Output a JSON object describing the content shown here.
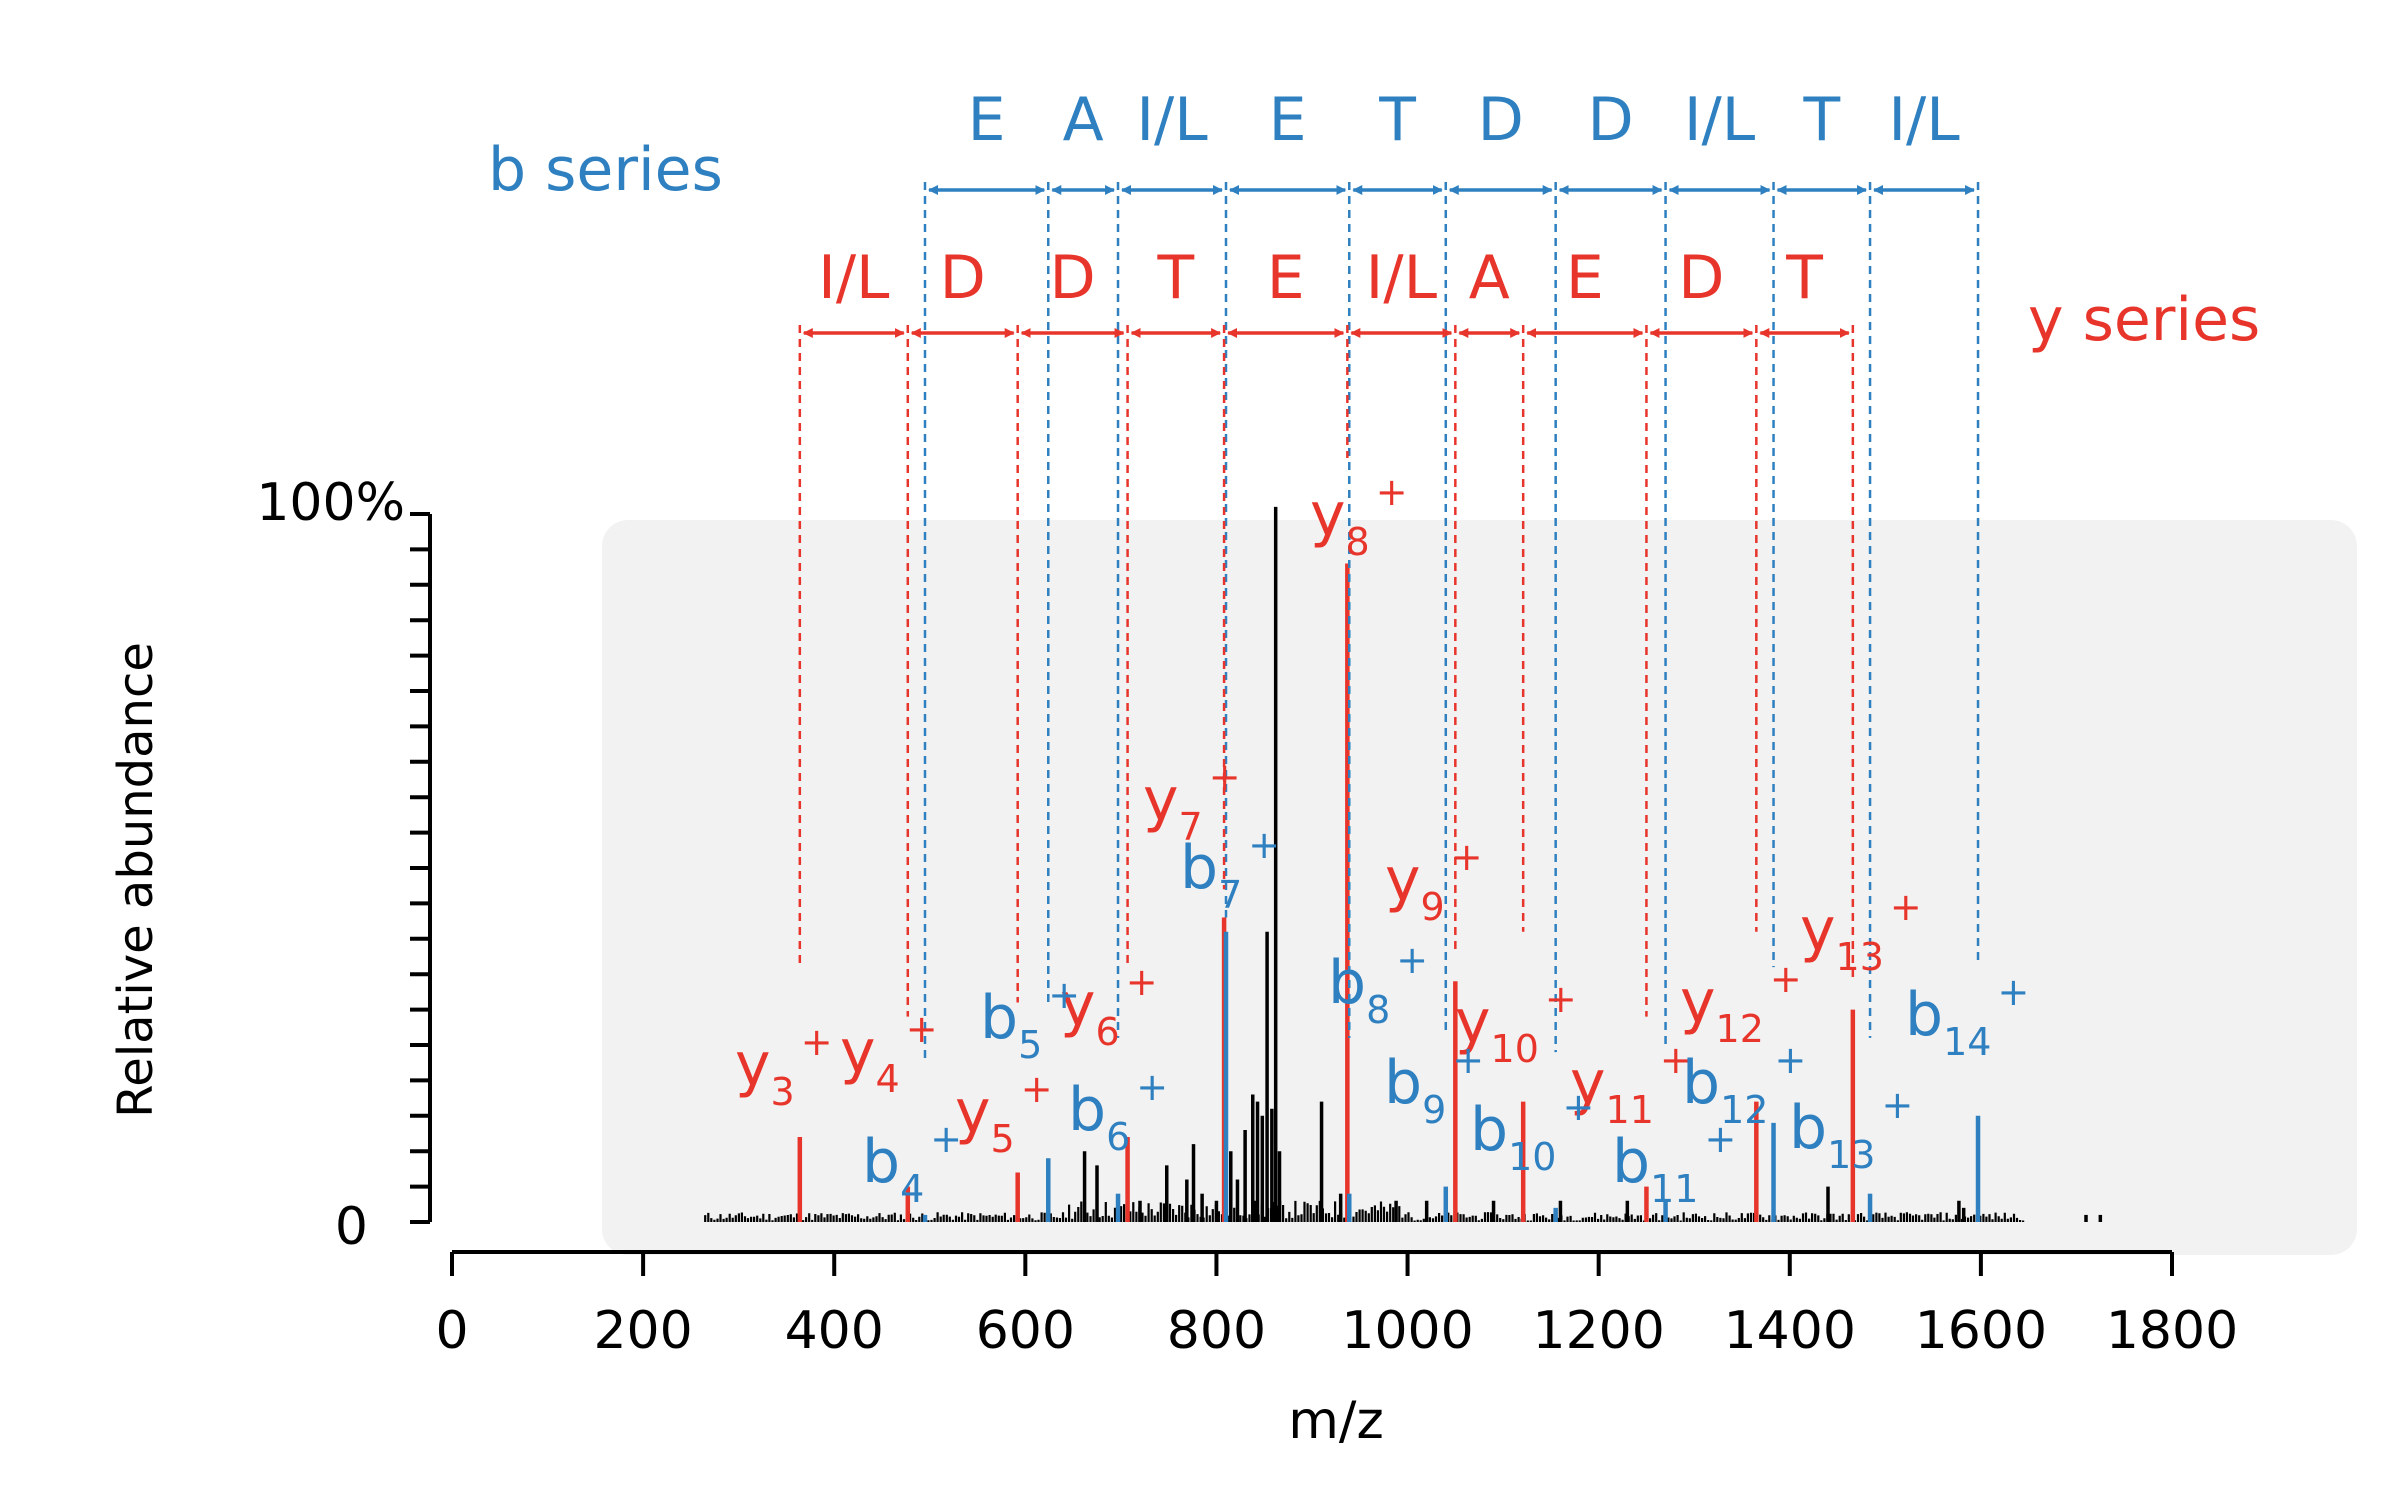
{
  "chart_data": {
    "type": "bar",
    "title": "",
    "xlabel": "m/z",
    "ylabel": "Relative abundance",
    "xlim": [
      0,
      1800
    ],
    "ylim": [
      0,
      100
    ],
    "x_ticks": [
      0,
      200,
      400,
      600,
      800,
      1000,
      1200,
      1400,
      1600,
      1800
    ],
    "y_tick_labels": [
      {
        "value": 100,
        "label": "100%"
      },
      {
        "value": 0,
        "label": "0"
      }
    ],
    "grid": false,
    "legend": "none",
    "colors": {
      "b": "#2e80c0",
      "y": "#e8352b",
      "other": "#000000",
      "shade": "#f2f2f2"
    },
    "b_series_label": "b series",
    "y_series_label": "y series",
    "b_ions": [
      {
        "base": "b",
        "sub": "4",
        "sup": "+",
        "mz": 495,
        "intensity": 1
      },
      {
        "base": "b",
        "sub": "5",
        "sup": "+",
        "mz": 624,
        "intensity": 9
      },
      {
        "base": "b",
        "sub": "6",
        "sup": "+",
        "mz": 697,
        "intensity": 4
      },
      {
        "base": "b",
        "sub": "7",
        "sup": "+",
        "mz": 810,
        "intensity": 41
      },
      {
        "base": "b",
        "sub": "8",
        "sup": "+",
        "mz": 939,
        "intensity": 4
      },
      {
        "base": "b",
        "sub": "9",
        "sup": "+",
        "mz": 1040,
        "intensity": 5
      },
      {
        "base": "b",
        "sub": "10",
        "sup": "+",
        "mz": 1155,
        "intensity": 2
      },
      {
        "base": "b",
        "sub": "11",
        "sup": "+",
        "mz": 1270,
        "intensity": 3
      },
      {
        "base": "b",
        "sub": "12",
        "sup": "+",
        "mz": 1383,
        "intensity": 14
      },
      {
        "base": "b",
        "sub": "13",
        "sup": "+",
        "mz": 1484,
        "intensity": 4
      },
      {
        "base": "b",
        "sub": "14",
        "sup": "+",
        "mz": 1597,
        "intensity": 15
      }
    ],
    "y_ions": [
      {
        "base": "y",
        "sub": "3",
        "sup": "+",
        "mz": 364,
        "intensity": 12
      },
      {
        "base": "y",
        "sub": "4",
        "sup": "+",
        "mz": 477,
        "intensity": 5
      },
      {
        "base": "y",
        "sub": "5",
        "sup": "+",
        "mz": 592,
        "intensity": 7
      },
      {
        "base": "y",
        "sub": "6",
        "sup": "+",
        "mz": 707,
        "intensity": 12
      },
      {
        "base": "y",
        "sub": "7",
        "sup": "+",
        "mz": 808,
        "intensity": 43
      },
      {
        "base": "y",
        "sub": "8",
        "sup": "+",
        "mz": 937,
        "intensity": 93
      },
      {
        "base": "y",
        "sub": "9",
        "sup": "+",
        "mz": 1050,
        "intensity": 34
      },
      {
        "base": "y",
        "sub": "10",
        "sup": "+",
        "mz": 1121,
        "intensity": 17
      },
      {
        "base": "y",
        "sub": "11",
        "sup": "+",
        "mz": 1250,
        "intensity": 5
      },
      {
        "base": "y",
        "sub": "12",
        "sup": "+",
        "mz": 1365,
        "intensity": 17
      },
      {
        "base": "y",
        "sub": "13",
        "sup": "+",
        "mz": 1466,
        "intensity": 30
      }
    ],
    "b_steps": [
      {
        "from": 495,
        "to": 624,
        "label": "E"
      },
      {
        "from": 624,
        "to": 697,
        "label": "A"
      },
      {
        "from": 697,
        "to": 810,
        "label": "I/L"
      },
      {
        "from": 810,
        "to": 939,
        "label": "E"
      },
      {
        "from": 939,
        "to": 1040,
        "label": "T"
      },
      {
        "from": 1040,
        "to": 1155,
        "label": "D"
      },
      {
        "from": 1155,
        "to": 1270,
        "label": "D"
      },
      {
        "from": 1270,
        "to": 1383,
        "label": "I/L"
      },
      {
        "from": 1383,
        "to": 1484,
        "label": "T"
      },
      {
        "from": 1484,
        "to": 1597,
        "label": "I/L"
      }
    ],
    "y_steps": [
      {
        "from": 364,
        "to": 477,
        "label": "I/L"
      },
      {
        "from": 477,
        "to": 592,
        "label": "D"
      },
      {
        "from": 592,
        "to": 707,
        "label": "D"
      },
      {
        "from": 707,
        "to": 808,
        "label": "T"
      },
      {
        "from": 808,
        "to": 937,
        "label": "E"
      },
      {
        "from": 937,
        "to": 1050,
        "label": "I/L"
      },
      {
        "from": 1050,
        "to": 1121,
        "label": "A"
      },
      {
        "from": 1121,
        "to": 1250,
        "label": "E"
      },
      {
        "from": 1250,
        "to": 1365,
        "label": "D"
      },
      {
        "from": 1365,
        "to": 1466,
        "label": "T"
      }
    ],
    "other_peaks": [
      {
        "mz": 662,
        "intensity": 10
      },
      {
        "mz": 675,
        "intensity": 8
      },
      {
        "mz": 720,
        "intensity": 3
      },
      {
        "mz": 748,
        "intensity": 8
      },
      {
        "mz": 769,
        "intensity": 6
      },
      {
        "mz": 776,
        "intensity": 11
      },
      {
        "mz": 785,
        "intensity": 4
      },
      {
        "mz": 800,
        "intensity": 3
      },
      {
        "mz": 815,
        "intensity": 10
      },
      {
        "mz": 822,
        "intensity": 6
      },
      {
        "mz": 830,
        "intensity": 13
      },
      {
        "mz": 838,
        "intensity": 18
      },
      {
        "mz": 843,
        "intensity": 17
      },
      {
        "mz": 848,
        "intensity": 15
      },
      {
        "mz": 853,
        "intensity": 41
      },
      {
        "mz": 858,
        "intensity": 16
      },
      {
        "mz": 862,
        "intensity": 101
      },
      {
        "mz": 866,
        "intensity": 10
      },
      {
        "mz": 910,
        "intensity": 17
      },
      {
        "mz": 930,
        "intensity": 4
      },
      {
        "mz": 988,
        "intensity": 3
      },
      {
        "mz": 1020,
        "intensity": 3
      },
      {
        "mz": 1090,
        "intensity": 3
      },
      {
        "mz": 1160,
        "intensity": 3
      },
      {
        "mz": 1230,
        "intensity": 3
      },
      {
        "mz": 1440,
        "intensity": 5
      },
      {
        "mz": 1577,
        "intensity": 3
      },
      {
        "mz": 1582,
        "intensity": 2
      },
      {
        "mz": 1710,
        "intensity": 1
      },
      {
        "mz": 1725,
        "intensity": 1
      }
    ]
  }
}
